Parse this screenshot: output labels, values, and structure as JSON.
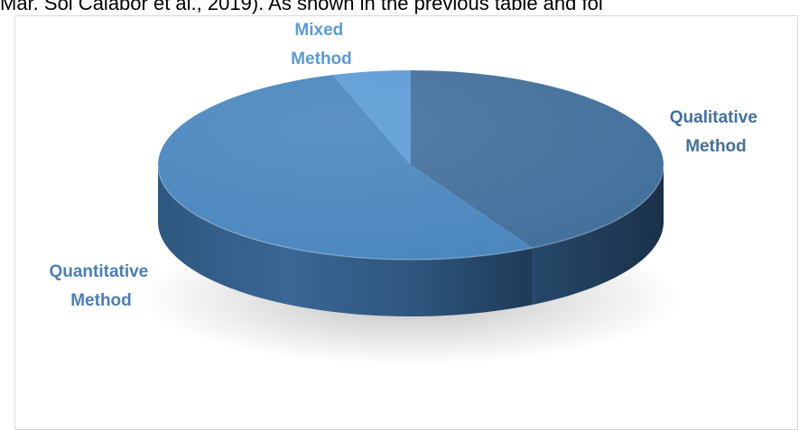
{
  "page": {
    "top_text": "Mar. Sol Calabor et al., 2019). As shown in the previous table and fol"
  },
  "chart_data": {
    "type": "pie",
    "categories": [
      "Qualitative Method",
      "Quantitative Method",
      "Mixed Method"
    ],
    "values": [
      42,
      53,
      5
    ],
    "labels": [
      {
        "line1": "Qualitative",
        "line2": "Method"
      },
      {
        "line1": "Quantitative",
        "line2": "Method"
      },
      {
        "line1": "Mixed",
        "line2": "Method"
      }
    ],
    "colors": {
      "qualitative_top": "#43709c",
      "quantitative_top": "#4a86be",
      "mixed_top": "#5b9bd5",
      "qualitative_label": "#43709c",
      "quantitative_label": "#4a7fb5",
      "mixed_label": "#5b9bd5"
    },
    "title": "",
    "legend": "none",
    "style": "3d"
  }
}
